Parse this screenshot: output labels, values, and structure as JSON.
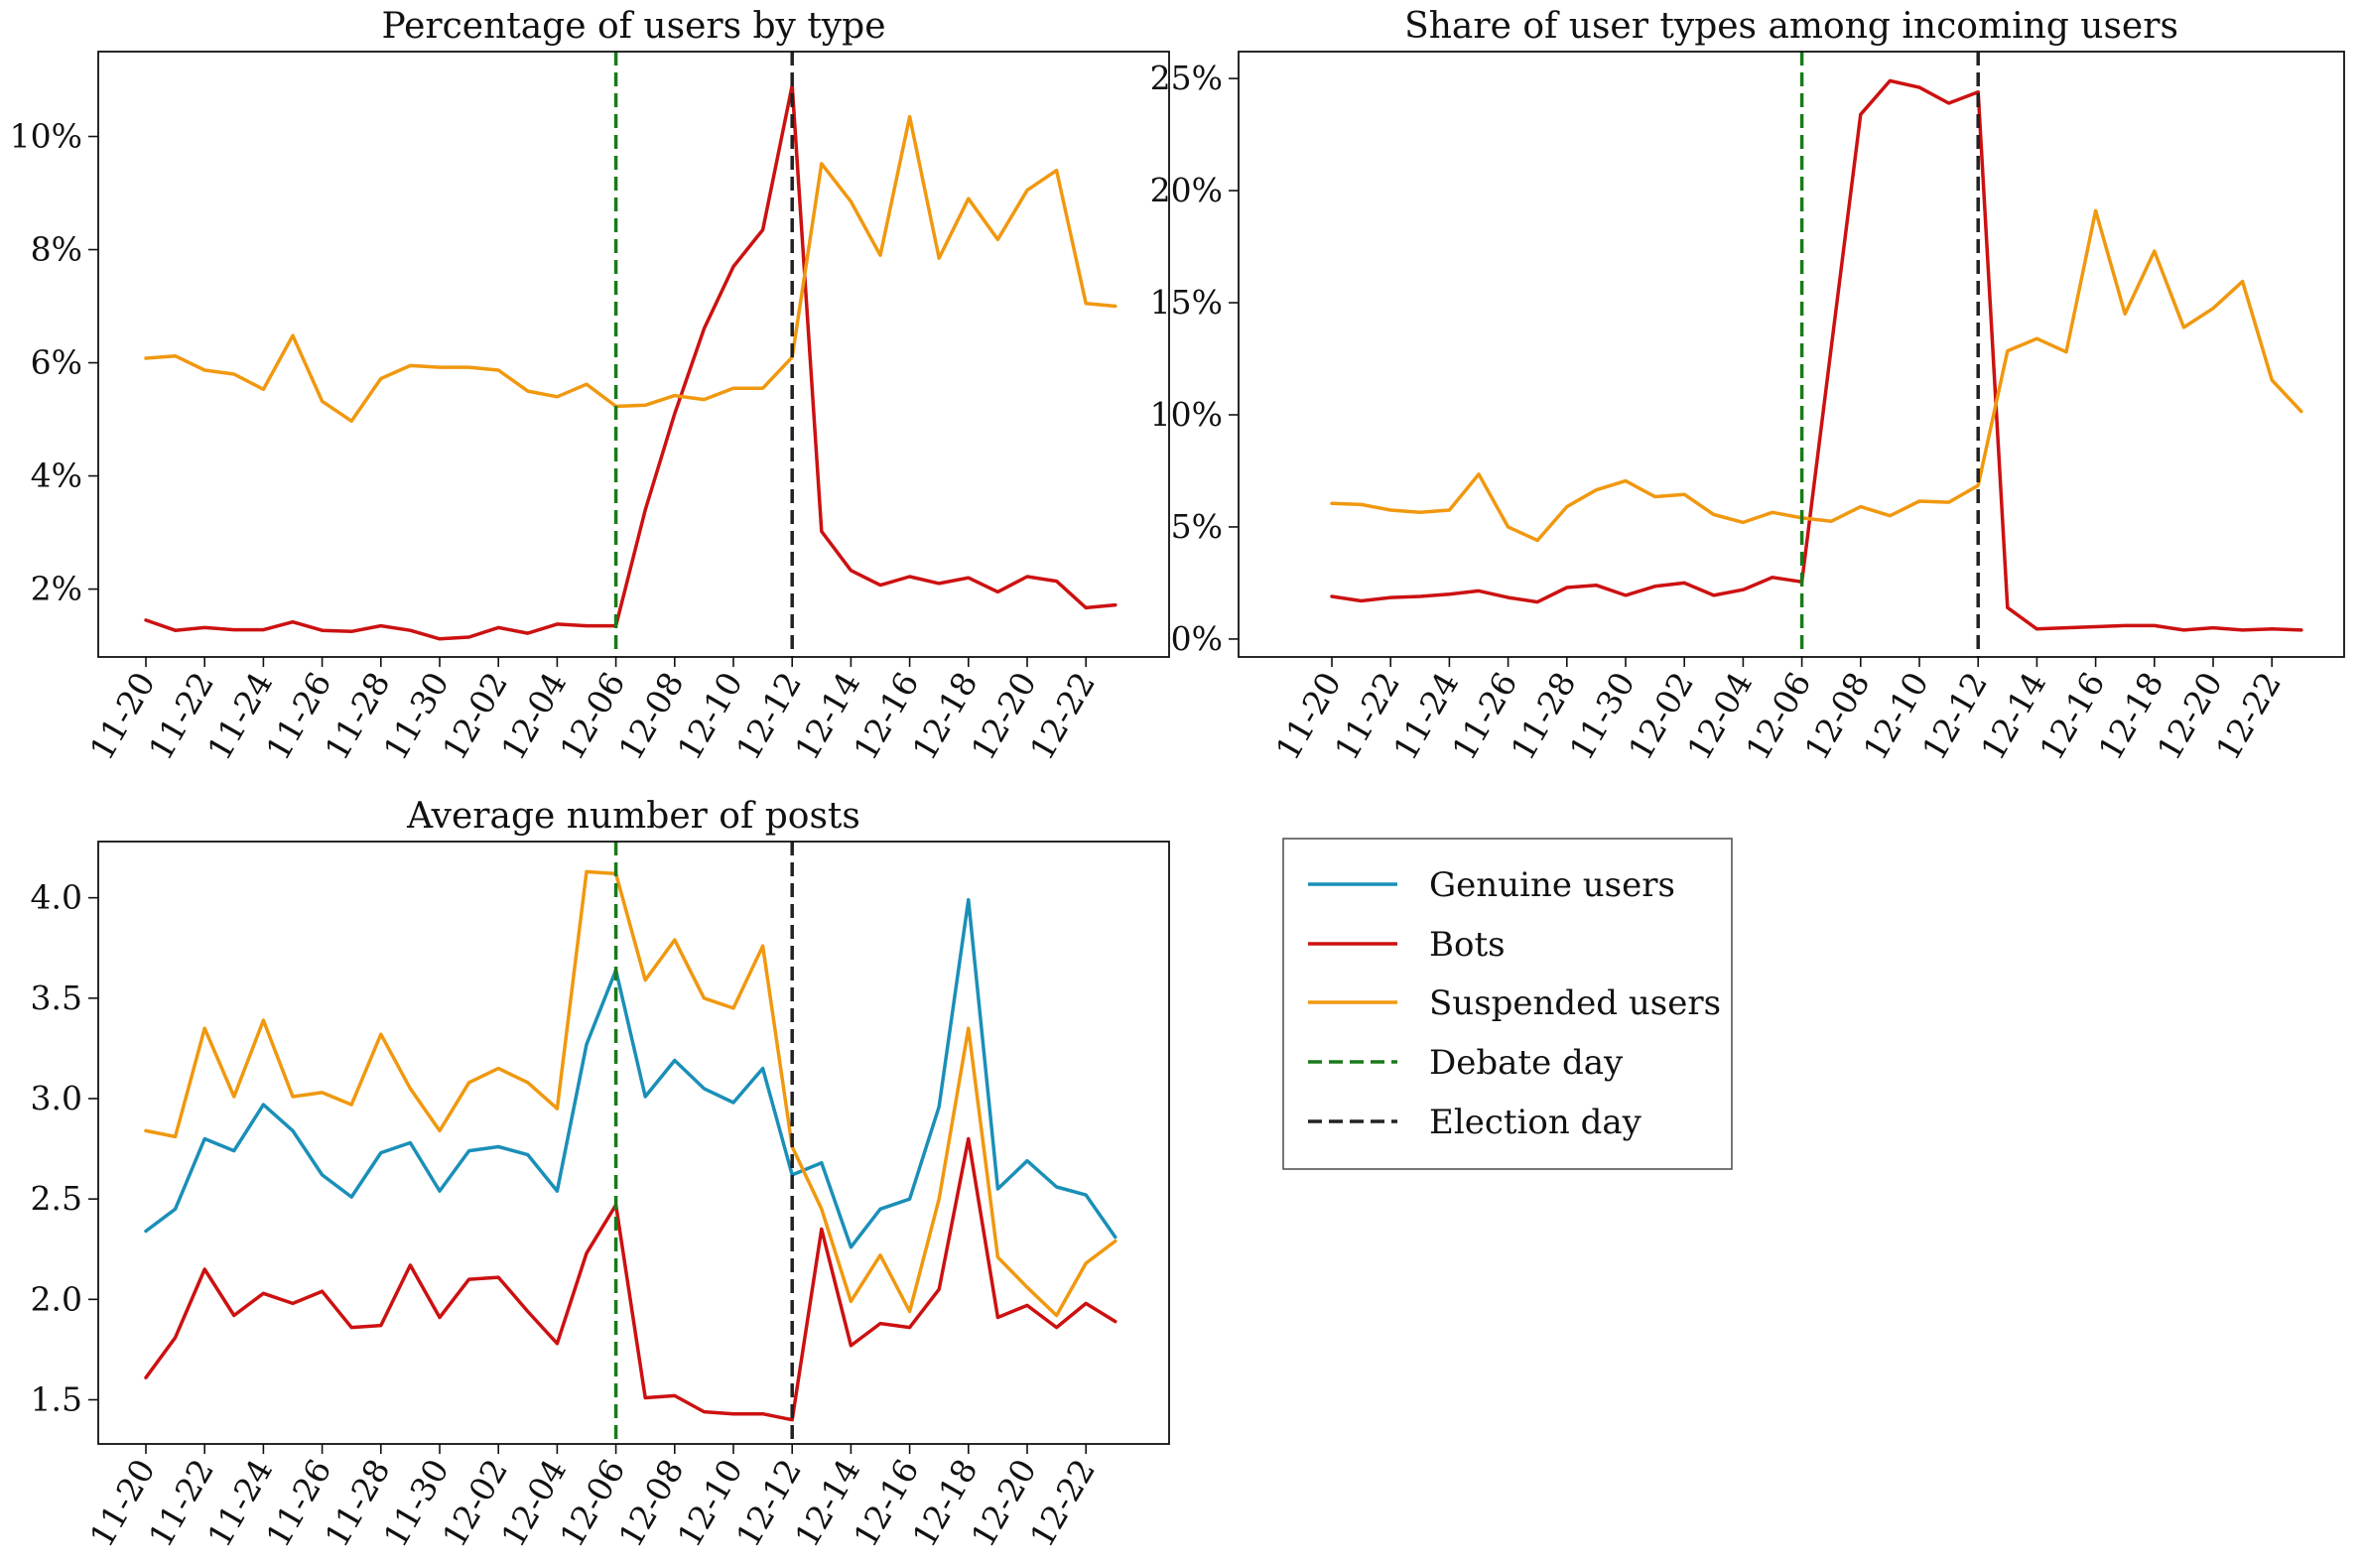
{
  "colors": {
    "genuine": "#1a8fb8",
    "bots": "#cc1111",
    "suspended": "#f0980f",
    "debate": "#1a7a1a",
    "election": "#222222"
  },
  "legend": {
    "items": [
      {
        "label": "Genuine users",
        "color": "#1a8fb8",
        "style": "solid"
      },
      {
        "label": "Bots",
        "color": "#cc1111",
        "style": "solid"
      },
      {
        "label": "Suspended users",
        "color": "#f0980f",
        "style": "solid"
      },
      {
        "label": "Debate day",
        "color": "#1a7a1a",
        "style": "dashed"
      },
      {
        "label": "Election day",
        "color": "#222222",
        "style": "dashed"
      }
    ]
  },
  "chart_data": [
    {
      "type": "line",
      "title": "Percentage of users by type",
      "xlabel": "",
      "ylabel": "",
      "x_tick_labels": [
        "11-20",
        "11-22",
        "11-24",
        "11-26",
        "11-28",
        "11-30",
        "12-02",
        "12-04",
        "12-06",
        "12-08",
        "12-10",
        "12-12",
        "12-14",
        "12-16",
        "12-18",
        "12-20",
        "12-22"
      ],
      "x_days": 34,
      "ylim": [
        0.8,
        11.5
      ],
      "yticks": [
        2,
        4,
        6,
        8,
        10
      ],
      "ytick_labels": [
        "2%",
        "4%",
        "6%",
        "8%",
        "10%"
      ],
      "debate_day_index": 16,
      "election_day_index": 22,
      "series": [
        {
          "name": "Bots",
          "color_key": "bots",
          "values": [
            1.45,
            1.27,
            1.32,
            1.28,
            1.28,
            1.42,
            1.27,
            1.25,
            1.35,
            1.27,
            1.12,
            1.15,
            1.32,
            1.22,
            1.38,
            1.35,
            1.35,
            3.4,
            5.1,
            6.6,
            7.7,
            8.35,
            10.9,
            3.02,
            2.33,
            2.07,
            2.22,
            2.1,
            2.2,
            1.95,
            2.22,
            2.14,
            1.67,
            1.72
          ]
        },
        {
          "name": "Suspended users",
          "color_key": "suspended",
          "values": [
            6.08,
            6.12,
            5.87,
            5.8,
            5.53,
            6.48,
            5.32,
            4.97,
            5.72,
            5.95,
            5.92,
            5.92,
            5.87,
            5.5,
            5.4,
            5.62,
            5.23,
            5.25,
            5.42,
            5.35,
            5.55,
            5.55,
            6.1,
            9.52,
            8.85,
            7.9,
            10.35,
            7.85,
            8.9,
            8.18,
            9.05,
            9.4,
            7.05,
            7.0
          ]
        }
      ]
    },
    {
      "type": "line",
      "title": "Share of user types among incoming users",
      "xlabel": "",
      "ylabel": "",
      "x_tick_labels": [
        "11-20",
        "11-22",
        "11-24",
        "11-26",
        "11-28",
        "11-30",
        "12-02",
        "12-04",
        "12-06",
        "12-08",
        "12-10",
        "12-12",
        "12-14",
        "12-16",
        "12-18",
        "12-20",
        "12-22"
      ],
      "x_days": 34,
      "ylim": [
        -0.8,
        26.2
      ],
      "yticks": [
        0,
        5,
        10,
        15,
        20,
        25
      ],
      "ytick_labels": [
        "0%",
        "5%",
        "10%",
        "15%",
        "20%",
        "25%"
      ],
      "debate_day_index": 16,
      "election_day_index": 22,
      "series": [
        {
          "name": "Bots",
          "color_key": "bots",
          "values": [
            1.9,
            1.7,
            1.85,
            1.9,
            2.0,
            2.15,
            1.85,
            1.65,
            2.3,
            2.4,
            1.95,
            2.35,
            2.5,
            1.95,
            2.2,
            2.75,
            2.55,
            13.0,
            23.4,
            24.9,
            24.6,
            23.9,
            24.4,
            1.4,
            0.45,
            0.5,
            0.55,
            0.6,
            0.6,
            0.4,
            0.5,
            0.4,
            0.45,
            0.4
          ]
        },
        {
          "name": "Suspended users",
          "color_key": "suspended",
          "values": [
            6.05,
            6.0,
            5.75,
            5.65,
            5.75,
            7.35,
            5.0,
            4.4,
            5.9,
            6.65,
            7.05,
            6.35,
            6.45,
            5.55,
            5.2,
            5.65,
            5.4,
            5.25,
            5.9,
            5.5,
            6.15,
            6.1,
            6.85,
            12.85,
            13.4,
            12.8,
            19.1,
            14.5,
            17.3,
            13.9,
            14.75,
            15.95,
            11.55,
            10.15
          ]
        }
      ]
    },
    {
      "type": "line",
      "title": "Average number of posts",
      "xlabel": "",
      "ylabel": "",
      "x_tick_labels": [
        "11-20",
        "11-22",
        "11-24",
        "11-26",
        "11-28",
        "11-30",
        "12-02",
        "12-04",
        "12-06",
        "12-08",
        "12-10",
        "12-12",
        "12-14",
        "12-16",
        "12-18",
        "12-20",
        "12-22"
      ],
      "x_days": 34,
      "ylim": [
        1.28,
        4.28
      ],
      "yticks": [
        1.5,
        2.0,
        2.5,
        3.0,
        3.5,
        4.0
      ],
      "ytick_labels": [
        "1.5",
        "2.0",
        "2.5",
        "3.0",
        "3.5",
        "4.0"
      ],
      "debate_day_index": 16,
      "election_day_index": 22,
      "series": [
        {
          "name": "Genuine users",
          "color_key": "genuine",
          "values": [
            2.34,
            2.45,
            2.8,
            2.74,
            2.97,
            2.84,
            2.62,
            2.51,
            2.73,
            2.78,
            2.54,
            2.74,
            2.76,
            2.72,
            2.54,
            3.27,
            3.64,
            3.01,
            3.19,
            3.05,
            2.98,
            3.15,
            2.62,
            2.68,
            2.26,
            2.45,
            2.5,
            2.96,
            3.99,
            2.55,
            2.69,
            2.56,
            2.52,
            2.31
          ]
        },
        {
          "name": "Bots",
          "color_key": "bots",
          "values": [
            1.61,
            1.81,
            2.15,
            1.92,
            2.03,
            1.98,
            2.04,
            1.86,
            1.87,
            2.17,
            1.91,
            2.1,
            2.11,
            1.94,
            1.78,
            2.23,
            2.47,
            1.51,
            1.52,
            1.44,
            1.43,
            1.43,
            1.4,
            2.35,
            1.77,
            1.88,
            1.86,
            2.05,
            2.8,
            1.91,
            1.97,
            1.86,
            1.98,
            1.89
          ]
        },
        {
          "name": "Suspended users",
          "color_key": "suspended",
          "values": [
            2.84,
            2.81,
            3.35,
            3.01,
            3.39,
            3.01,
            3.03,
            2.97,
            3.32,
            3.05,
            2.84,
            3.08,
            3.15,
            3.08,
            2.95,
            4.13,
            4.12,
            3.59,
            3.79,
            3.5,
            3.45,
            3.76,
            2.76,
            2.45,
            1.99,
            2.22,
            1.94,
            2.5,
            3.35,
            2.21,
            2.06,
            1.92,
            2.18,
            2.29
          ]
        }
      ]
    }
  ]
}
